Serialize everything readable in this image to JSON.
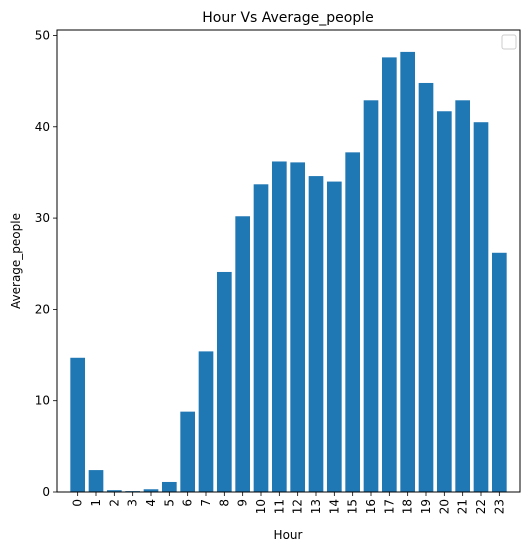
{
  "chart_data": {
    "type": "bar",
    "title": "Hour Vs Average_people",
    "xlabel": "Hour",
    "ylabel": "Average_people",
    "categories": [
      "0",
      "1",
      "2",
      "3",
      "4",
      "5",
      "6",
      "7",
      "8",
      "9",
      "10",
      "11",
      "12",
      "13",
      "14",
      "15",
      "16",
      "17",
      "18",
      "19",
      "20",
      "21",
      "22",
      "23"
    ],
    "values": [
      14.7,
      2.4,
      0.2,
      0.1,
      0.3,
      1.1,
      8.8,
      15.4,
      24.1,
      30.2,
      33.7,
      36.2,
      36.1,
      34.6,
      34.0,
      37.2,
      42.9,
      47.6,
      48.2,
      44.8,
      41.7,
      42.9,
      40.5,
      26.2
    ],
    "ylim": [
      0,
      50.6
    ],
    "yticks": [
      0,
      10,
      20,
      30,
      40,
      50
    ],
    "bar_color": "#1f77b4",
    "legend": {
      "placement": "top-right",
      "entries": []
    },
    "grid": false
  }
}
